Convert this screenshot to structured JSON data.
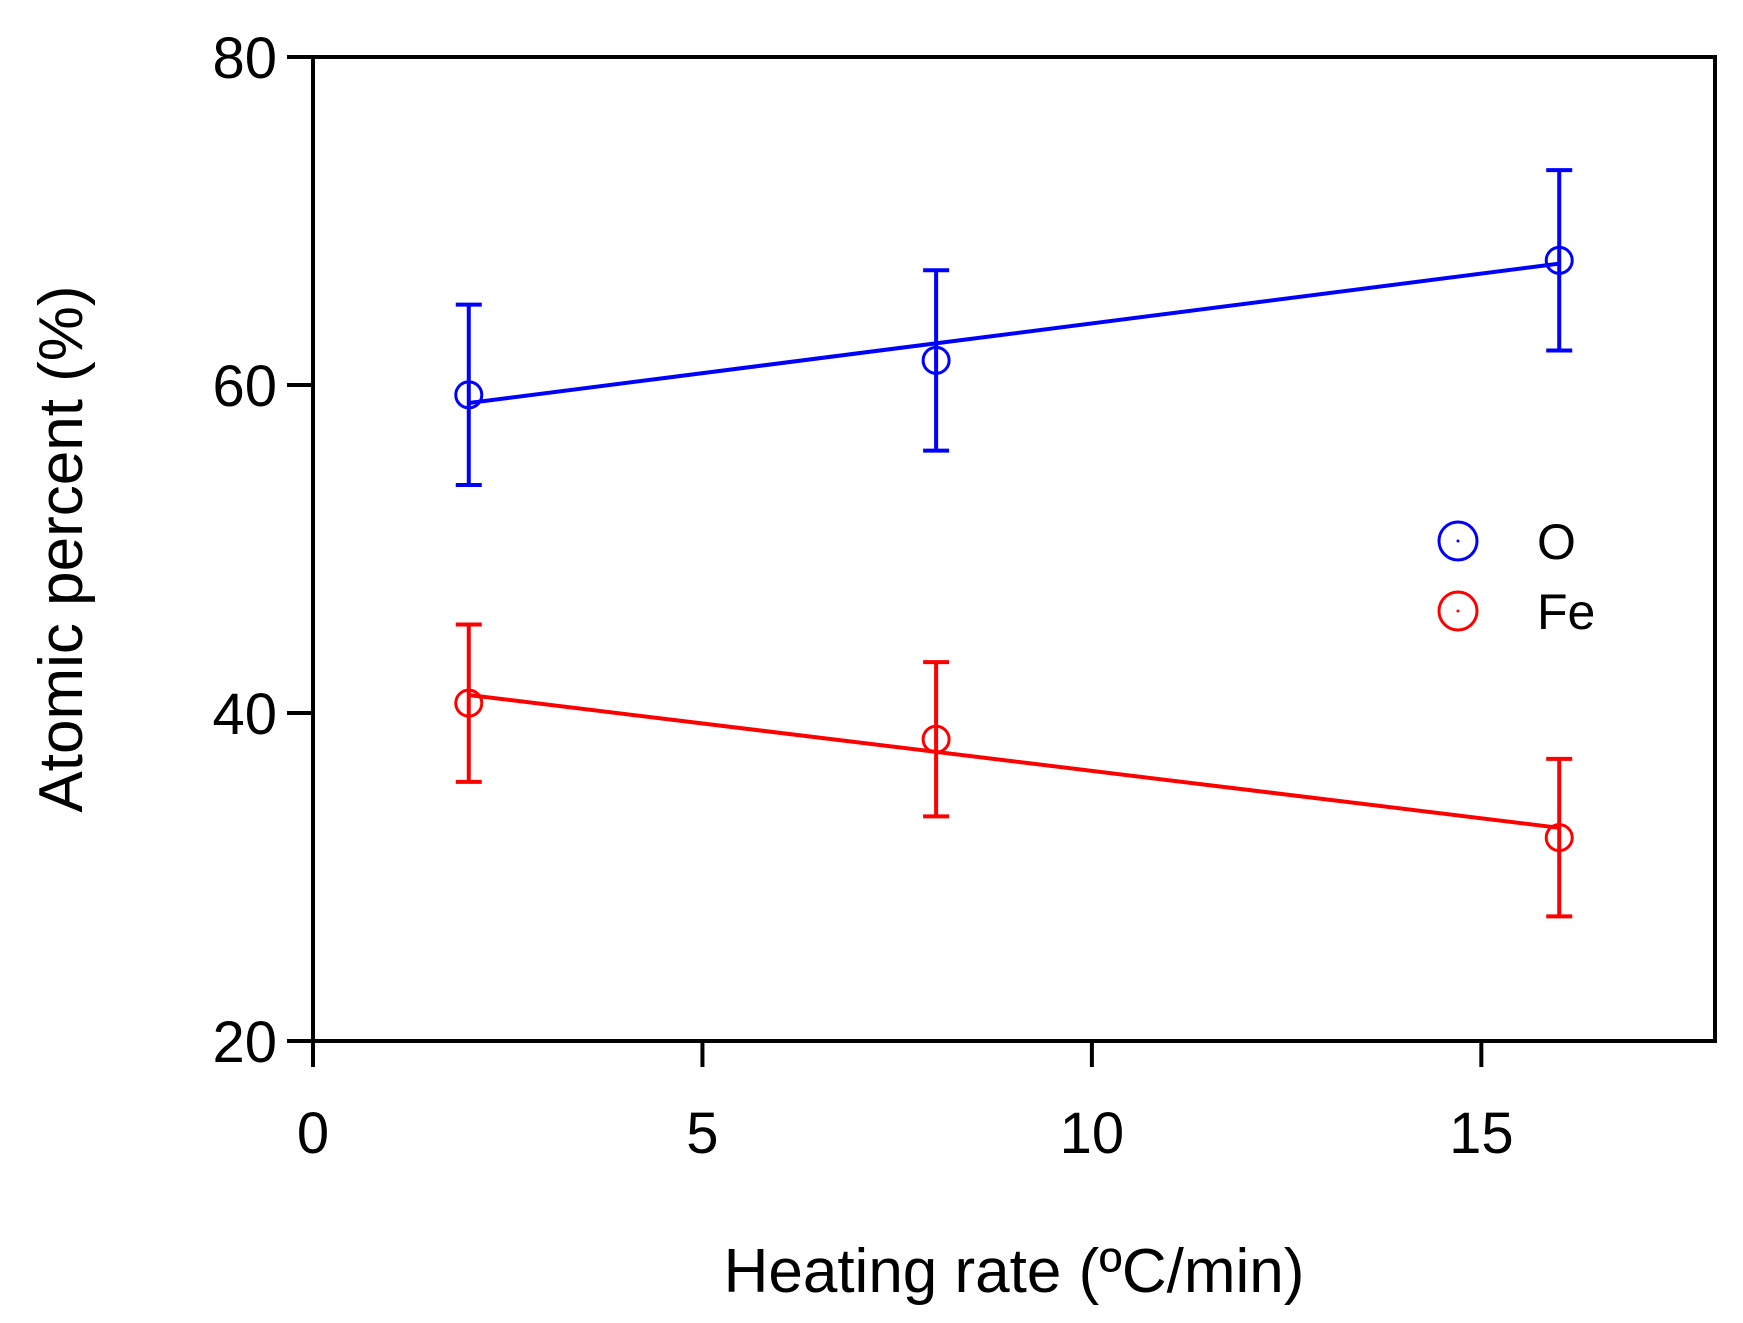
{
  "chart_data": {
    "type": "scatter",
    "xlabel": "Heating rate (ºC/min)",
    "ylabel": "Atomic percent (%)",
    "xlim": [
      0,
      18
    ],
    "ylim": [
      20,
      80
    ],
    "xticks": [
      0,
      5,
      10,
      15
    ],
    "yticks": [
      20,
      40,
      60,
      80
    ],
    "xtick_labels": [
      "0",
      "5",
      "10",
      "15"
    ],
    "ytick_labels": [
      "20",
      "40",
      "60",
      "80"
    ],
    "grid": false,
    "legend_position": "right",
    "series": [
      {
        "name": "O",
        "color": "#0000ff",
        "x": [
          2,
          8,
          16
        ],
        "y": [
          59.4,
          61.5,
          67.6
        ],
        "err_low": [
          5.5,
          5.5,
          5.5
        ],
        "err_high": [
          5.5,
          5.5,
          5.5
        ],
        "fit": {
          "x": [
            2,
            16
          ],
          "y": [
            58.9,
            67.4
          ]
        }
      },
      {
        "name": "Fe",
        "color": "#ff0000",
        "x": [
          2,
          8,
          16
        ],
        "y": [
          40.6,
          38.4,
          32.4
        ],
        "err_low": [
          4.8,
          4.7,
          4.8
        ],
        "err_high": [
          4.8,
          4.7,
          4.8
        ],
        "fit": {
          "x": [
            2,
            16
          ],
          "y": [
            41.1,
            33.0
          ]
        }
      }
    ]
  }
}
